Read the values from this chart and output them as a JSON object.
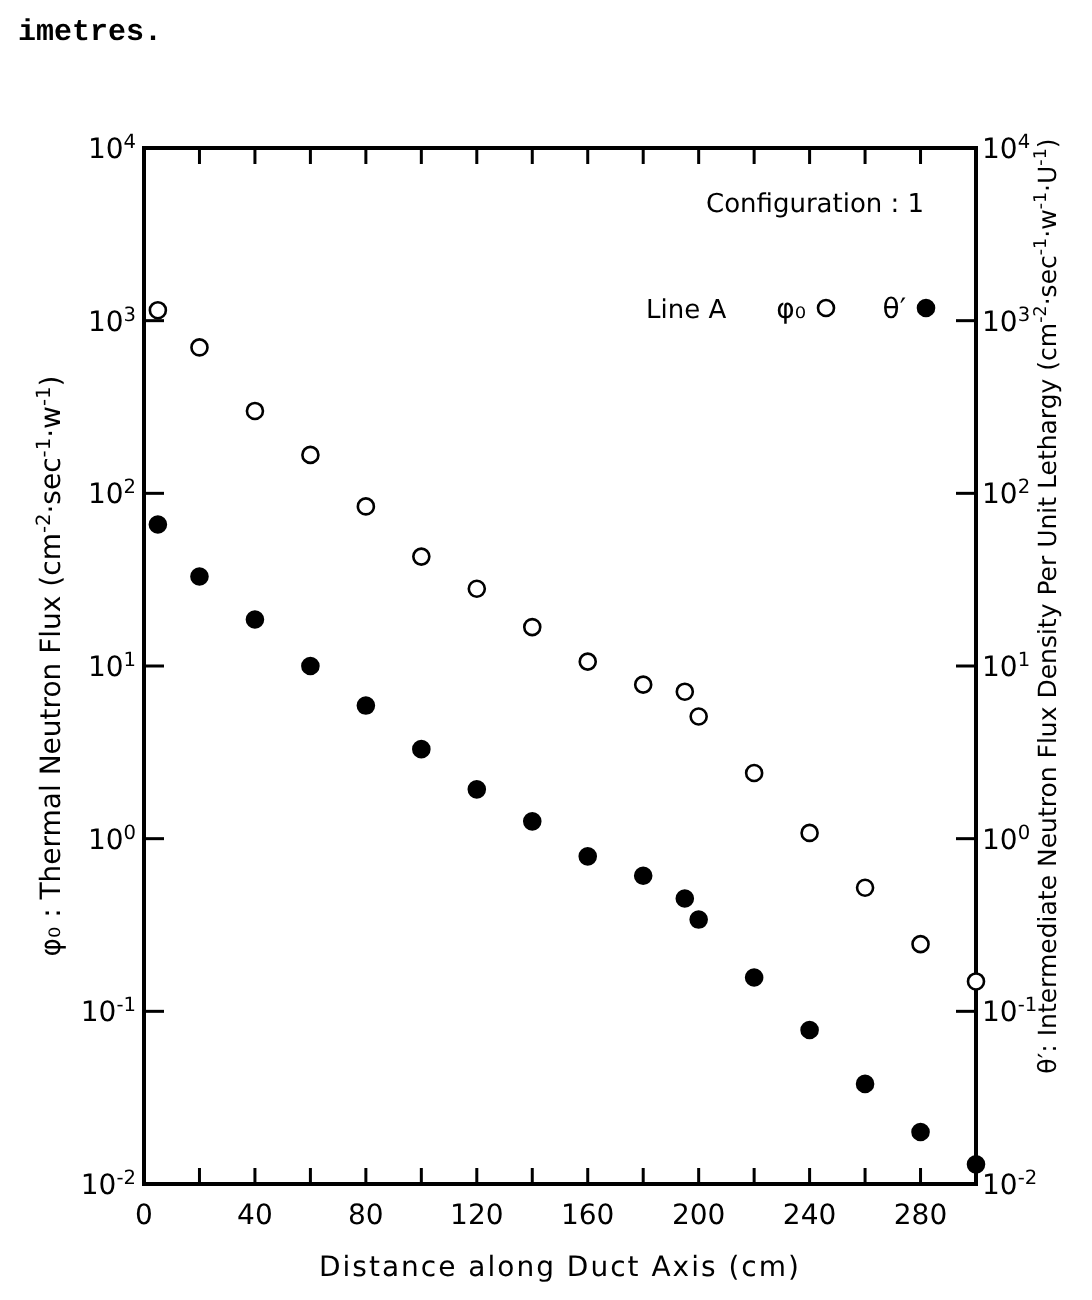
{
  "chart_data": {
    "type": "scatter",
    "ylabel": "φ₀ : Thermal Neutron Flux (cm$^{-2}$·sec$^{-1}$·w$^{-1}$)",
    "y2label": "θ′: Intermediate Neutron Flux Density Per Unit Lethargy (cm$^{-2}$·sec$^{-1}$·w$^{-1}$·U$^{-1}$)",
    "xlabel": "Distance along Duct Axis (cm)",
    "legend_title": "Configuration : 1",
    "annotations": [
      "imetres.",
      "Line A"
    ],
    "log": "y",
    "legend": "top right",
    "marker": "circle",
    "grid": false,
    "xlim": [
      0,
      300
    ],
    "xticks": [
      0,
      {
        "value": 20,
        "label": null
      },
      40,
      {
        "value": 60,
        "label": null
      },
      80,
      {
        "value": 100,
        "label": null
      },
      120,
      {
        "value": 140,
        "label": null
      },
      160,
      {
        "value": 180,
        "label": null
      },
      200,
      {
        "value": 220,
        "label": null
      },
      240,
      {
        "value": 260,
        "label": null
      },
      280
    ],
    "ylim": [
      0.01,
      10000
    ],
    "yticks": [
      {
        "value": 0.01,
        "label": "10$^{-2}$"
      },
      {
        "value": 0.1,
        "label": "10$^{-1}$"
      },
      {
        "value": 1,
        "label": "10$^{0}$"
      },
      {
        "value": 10,
        "label": "10$^{1}$"
      },
      {
        "value": 100,
        "label": "10$^{2}$"
      },
      {
        "value": 1000,
        "label": "10$^{3}$"
      },
      {
        "value": 10000,
        "label": "10$^{4}$"
      }
    ],
    "series": [
      {
        "name": "φ₀",
        "color": "#ffffff",
        "x": [
          5,
          20,
          40,
          60,
          80,
          100,
          120,
          140,
          160,
          180,
          195,
          200,
          220,
          240,
          260,
          280,
          300
        ],
        "values": [
          1150,
          700,
          300,
          167,
          84,
          43,
          28,
          16.8,
          10.6,
          7.8,
          7.1,
          5.1,
          2.4,
          1.08,
          0.52,
          0.245,
          0.149
        ]
      },
      {
        "name": "θ′",
        "color": "#000000",
        "x": [
          5,
          20,
          40,
          60,
          80,
          100,
          120,
          140,
          160,
          180,
          195,
          200,
          220,
          240,
          260,
          280,
          300
        ],
        "values": [
          66,
          33,
          18.6,
          10,
          5.9,
          3.3,
          1.93,
          1.26,
          0.79,
          0.61,
          0.45,
          0.34,
          0.157,
          0.078,
          0.038,
          0.02,
          0.013
        ]
      }
    ]
  }
}
